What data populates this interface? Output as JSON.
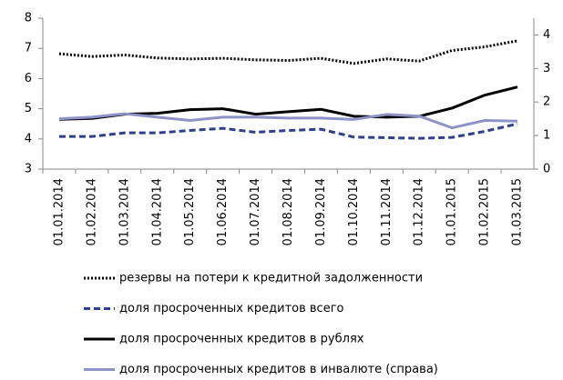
{
  "chart_data": {
    "type": "line",
    "categories": [
      "01.01.2014",
      "01.02.2014",
      "01.03.2014",
      "01.04.2014",
      "01.05.2014",
      "01.06.2014",
      "01.07.2014",
      "01.08.2014",
      "01.09.2014",
      "01.10.2014",
      "01.11.2014",
      "01.12.2014",
      "01.01.2015",
      "01.02.2015",
      "01.03.2015"
    ],
    "ylim": [
      3,
      8
    ],
    "yticks": [
      3,
      4,
      5,
      6,
      7,
      8
    ],
    "y2lim": [
      0,
      4.5
    ],
    "y2ticks": [
      0,
      1,
      2,
      3,
      4
    ],
    "legend": "bottom",
    "series": [
      {
        "name": "резервы на потери к кредитной задолженности",
        "color": "#000000",
        "style": "dotted",
        "values": [
          6.82,
          6.73,
          6.78,
          6.68,
          6.65,
          6.67,
          6.62,
          6.6,
          6.67,
          6.5,
          6.65,
          6.58,
          6.93,
          7.05,
          7.25
        ]
      },
      {
        "name": "доля просроченных кредитов всего",
        "color": "#2e3f8f",
        "style": "dashed",
        "values": [
          4.08,
          4.08,
          4.2,
          4.2,
          4.28,
          4.35,
          4.22,
          4.28,
          4.32,
          4.06,
          4.04,
          4.02,
          4.05,
          4.25,
          4.5
        ]
      },
      {
        "name": "доля просроченных кредитов в рублях",
        "color": "#000000",
        "style": "solid",
        "values": [
          4.65,
          4.68,
          4.82,
          4.85,
          4.97,
          5.0,
          4.82,
          4.9,
          4.98,
          4.75,
          4.72,
          4.75,
          5.02,
          5.45,
          5.72
        ]
      },
      {
        "name": "доля просроченных кредитов в инвалюте (справа)",
        "color": "#8e93c7",
        "style": "solid",
        "axis": "y2",
        "values": [
          1.5,
          1.55,
          1.65,
          1.55,
          1.45,
          1.55,
          1.55,
          1.52,
          1.52,
          1.48,
          1.63,
          1.58,
          1.23,
          1.45,
          1.43
        ]
      }
    ]
  }
}
